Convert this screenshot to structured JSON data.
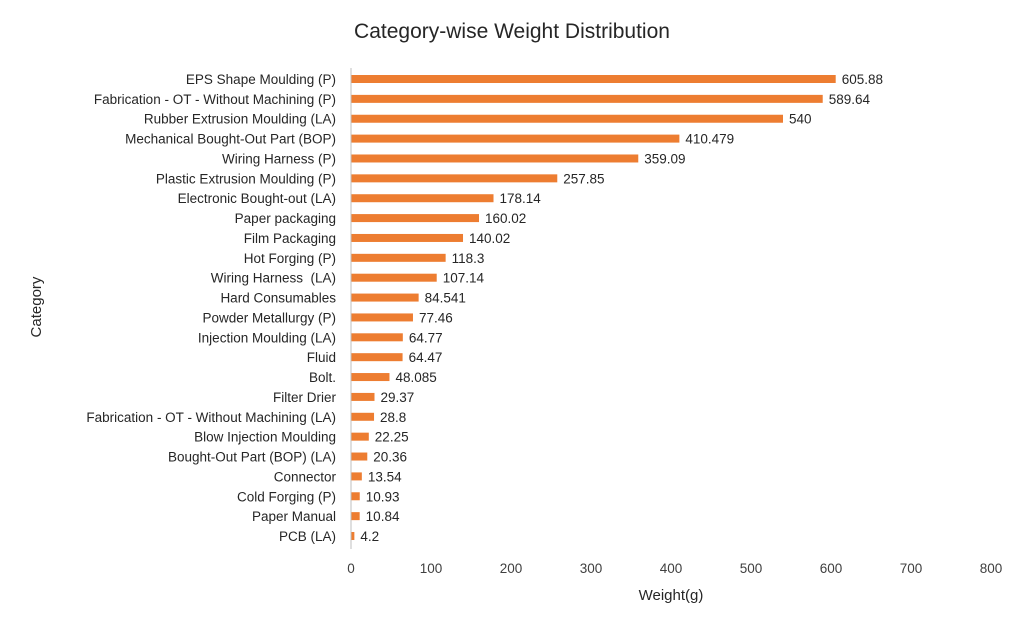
{
  "chart_data": {
    "type": "bar",
    "orientation": "horizontal",
    "title": "Category-wise Weight Distribution",
    "xlabel": "Weight(g)",
    "ylabel": "Category",
    "xlim": [
      0,
      800
    ],
    "x_ticks": [
      0,
      100,
      200,
      300,
      400,
      500,
      600,
      700,
      800
    ],
    "grid": false,
    "legend": "none",
    "bar_color": "#ED7D31",
    "categories": [
      "EPS Shape Moulding (P)",
      "Fabrication - OT - Without Machining (P)",
      "Rubber Extrusion Moulding (LA)",
      "Mechanical Bought-Out Part (BOP)",
      "Wiring Harness (P)",
      "Plastic Extrusion Moulding (P)",
      "Electronic Bought-out (LA)",
      "Paper packaging",
      "Film Packaging",
      "Hot Forging (P)",
      "Wiring Harness  (LA)",
      "Hard Consumables",
      "Powder Metallurgy (P)",
      "Injection Moulding (LA)",
      "Fluid",
      "Bolt.",
      "Filter Drier",
      "Fabrication - OT - Without Machining (LA)",
      "Blow Injection Moulding",
      "Bought-Out Part (BOP) (LA)",
      "Connector",
      "Cold Forging (P)",
      "Paper Manual",
      "PCB (LA)"
    ],
    "values": [
      605.88,
      589.64,
      540,
      410.479,
      359.09,
      257.85,
      178.14,
      160.02,
      140.02,
      118.3,
      107.14,
      84.541,
      77.46,
      64.77,
      64.47,
      48.085,
      29.37,
      28.8,
      22.25,
      20.36,
      13.54,
      10.93,
      10.84,
      4.2
    ],
    "data_labels": [
      "605.88",
      "589.64",
      "540",
      "410.479",
      "359.09",
      "257.85",
      "178.14",
      "160.02",
      "140.02",
      "118.3",
      "107.14",
      "84.541",
      "77.46",
      "64.77",
      "64.47",
      "48.085",
      "29.37",
      "28.8",
      "22.25",
      "20.36",
      "13.54",
      "10.93",
      "10.84",
      "4.2"
    ]
  }
}
